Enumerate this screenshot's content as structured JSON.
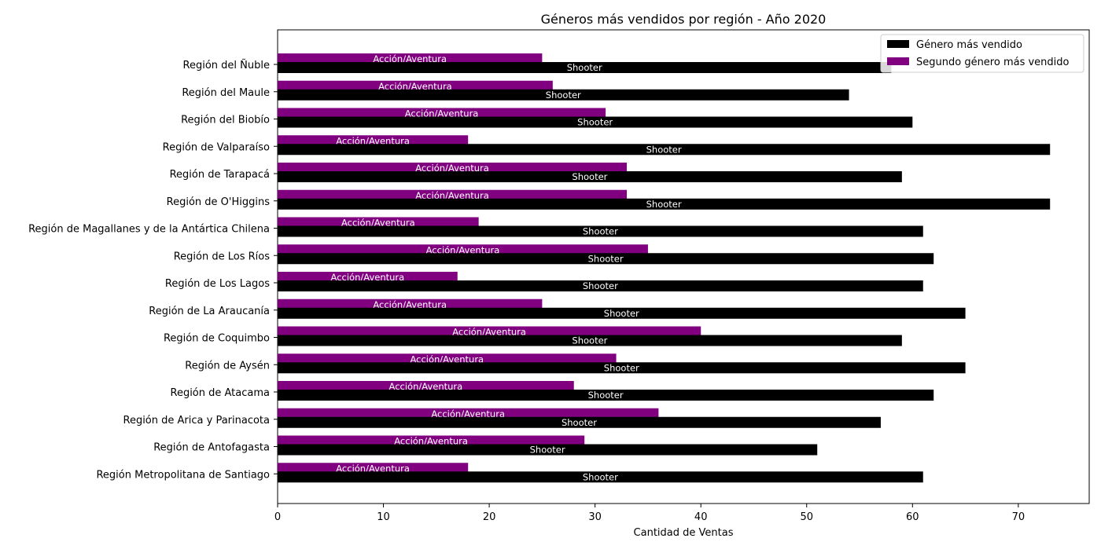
{
  "chart_data": {
    "type": "bar",
    "orientation": "horizontal",
    "title": "Géneros más vendidos por región - Año 2020",
    "xlabel": "Cantidad de Ventas",
    "ylabel": "",
    "xlim": [
      0,
      76.7
    ],
    "xticks": [
      0,
      10,
      20,
      30,
      40,
      50,
      60,
      70
    ],
    "grid": false,
    "legend_position": "top-right",
    "categories": [
      "Región del Ñuble",
      "Región del Maule",
      "Región del Biobío",
      "Región de Valparaíso",
      "Región de Tarapacá",
      "Región de O'Higgins",
      "Región de Magallanes y de la Antártica Chilena",
      "Región de Los Ríos",
      "Región de Los Lagos",
      "Región de La Araucanía",
      "Región de Coquimbo",
      "Región de Aysén",
      "Región de Atacama",
      "Región de Arica y Parinacota",
      "Región de Antofagasta",
      "Región Metropolitana de Santiago"
    ],
    "series": [
      {
        "name": "Género más vendido",
        "color": "#000000",
        "values": [
          58,
          54,
          60,
          73,
          59,
          73,
          61,
          62,
          61,
          65,
          59,
          65,
          62,
          57,
          51,
          61
        ],
        "bar_labels": [
          "Shooter",
          "Shooter",
          "Shooter",
          "Shooter",
          "Shooter",
          "Shooter",
          "Shooter",
          "Shooter",
          "Shooter",
          "Shooter",
          "Shooter",
          "Shooter",
          "Shooter",
          "Shooter",
          "Shooter",
          "Shooter"
        ]
      },
      {
        "name": "Segundo género más vendido",
        "color": "#800080",
        "values": [
          25,
          26,
          31,
          18,
          33,
          33,
          19,
          35,
          17,
          25,
          40,
          32,
          28,
          36,
          29,
          18
        ],
        "bar_labels": [
          "Acción/Aventura",
          "Acción/Aventura",
          "Acción/Aventura",
          "Acción/Aventura",
          "Acción/Aventura",
          "Acción/Aventura",
          "Acción/Aventura",
          "Acción/Aventura",
          "Acción/Aventura",
          "Acción/Aventura",
          "Acción/Aventura",
          "Acción/Aventura",
          "Acción/Aventura",
          "Acción/Aventura",
          "Acción/Aventura",
          "Acción/Aventura"
        ]
      }
    ]
  }
}
